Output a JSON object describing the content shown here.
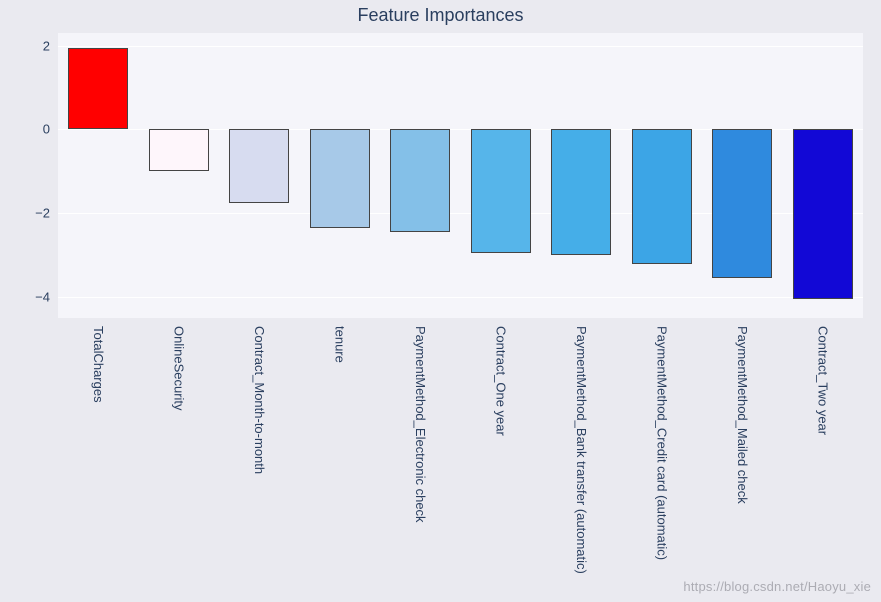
{
  "chart": {
    "type": "bar",
    "title": "Feature Importances",
    "title_fontsize": 18,
    "title_color": "#2a3f5f",
    "background_color": "#eaeaf0",
    "plot_background_color": "#f5f5fa",
    "grid_color": "#ffffff",
    "axis_text_color": "#2a3f5f",
    "tick_fontsize": 13,
    "bar_border_color": "#444444",
    "ylim": [
      -4.5,
      2.3
    ],
    "yticks": [
      -4,
      -2,
      0,
      2
    ],
    "bar_gap_ratio": 0.25,
    "categories": [
      "TotalCharges",
      "OnlineSecurity",
      "Contract_Month-to-month",
      "tenure",
      "PaymentMethod_Electronic check",
      "Contract_One year",
      "PaymentMethod_Bank transfer (automatic)",
      "PaymentMethod_Credit card (automatic)",
      "PaymentMethod_Mailed check",
      "Contract_Two year"
    ],
    "values": [
      1.95,
      -1.0,
      -1.75,
      -2.35,
      -2.45,
      -2.95,
      -3.0,
      -3.2,
      -3.55,
      -4.05
    ],
    "bar_colors": [
      "#ff0000",
      "#fef6fb",
      "#d7dcf0",
      "#a7c9e8",
      "#84c0e8",
      "#56b5ea",
      "#45aee8",
      "#3ca5e6",
      "#2f8ade",
      "#1208d6"
    ]
  },
  "watermark": "https://blog.csdn.net/Haoyu_xie"
}
